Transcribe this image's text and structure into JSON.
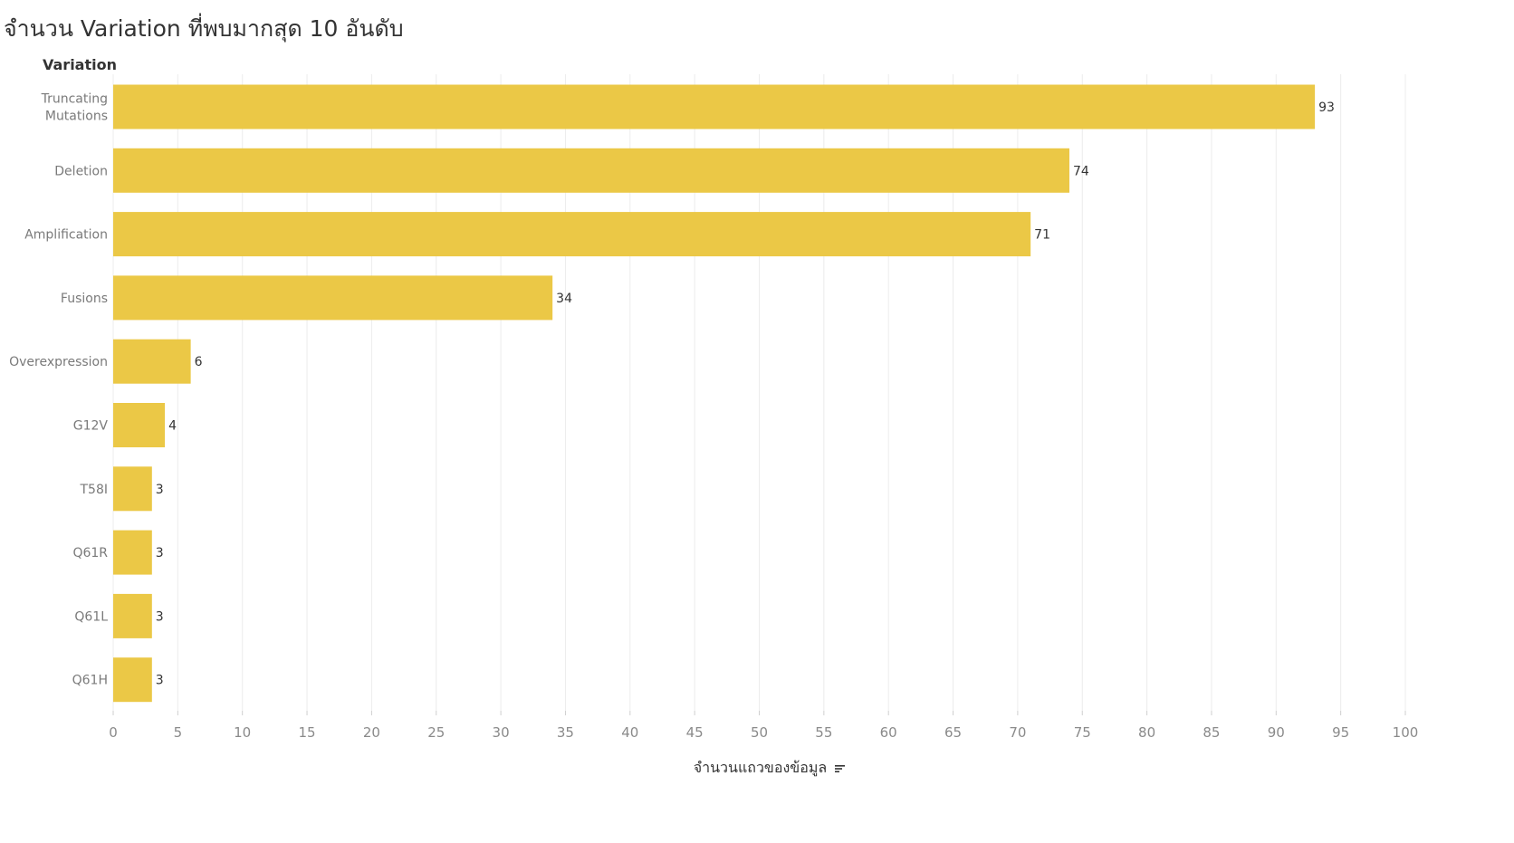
{
  "page": {
    "title": "จำนวน Variation ที่พบมากสุด 10 อันดับ"
  },
  "chart_data": {
    "type": "bar",
    "orientation": "horizontal",
    "title": "จำนวน Variation ที่พบมากสุด 10 อันดับ",
    "ylabel": "Variation",
    "xlabel": "จำนวนแถวของข้อมูล",
    "categories": [
      [
        "Truncating",
        "Mutations"
      ],
      [
        "Deletion"
      ],
      [
        "Amplification"
      ],
      [
        "Fusions"
      ],
      [
        "Overexpression"
      ],
      [
        "G12V"
      ],
      [
        "T58I"
      ],
      [
        "Q61R"
      ],
      [
        "Q61L"
      ],
      [
        "Q61H"
      ]
    ],
    "values": [
      93,
      74,
      71,
      34,
      6,
      4,
      3,
      3,
      3,
      3
    ],
    "xlim": [
      0,
      100
    ],
    "xticks": [
      0,
      5,
      10,
      15,
      20,
      25,
      30,
      35,
      40,
      45,
      50,
      55,
      60,
      65,
      70,
      75,
      80,
      85,
      90,
      95,
      100
    ],
    "bar_color": "#EBC846",
    "grid": "vertical",
    "data_labels": true,
    "sorted": "descending"
  },
  "icons": {
    "sort": "sort-descending-icon"
  }
}
